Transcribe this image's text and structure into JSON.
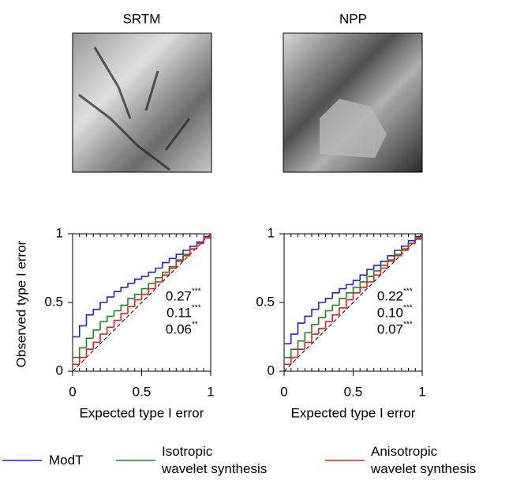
{
  "chart_data": [
    {
      "type": "step",
      "title": "SRTM",
      "xlabel": "Expected type I error",
      "ylabel": "Observed type I error",
      "x": [
        0,
        0.05,
        0.1,
        0.15,
        0.2,
        0.25,
        0.3,
        0.35,
        0.4,
        0.45,
        0.5,
        0.55,
        0.6,
        0.65,
        0.7,
        0.75,
        0.8,
        0.85,
        0.9,
        0.95,
        1
      ],
      "xlim": [
        0,
        1
      ],
      "ylim": [
        0,
        1
      ],
      "xticks": [
        0,
        0.5,
        1
      ],
      "yticks": [
        0,
        0.5,
        1
      ],
      "series": [
        {
          "name": "ModT",
          "color": "#1f1fe6",
          "values": [
            0.25,
            0.33,
            0.41,
            0.45,
            0.5,
            0.54,
            0.58,
            0.61,
            0.64,
            0.67,
            0.69,
            0.72,
            0.75,
            0.79,
            0.82,
            0.85,
            0.88,
            0.91,
            0.94,
            0.98,
            1
          ]
        },
        {
          "name": "Isotropic\nwavelet synthesis",
          "color": "#1a8a1a",
          "values": [
            0.1,
            0.17,
            0.24,
            0.3,
            0.36,
            0.4,
            0.44,
            0.48,
            0.53,
            0.56,
            0.6,
            0.64,
            0.68,
            0.72,
            0.76,
            0.81,
            0.85,
            0.89,
            0.93,
            0.97,
            1
          ]
        },
        {
          "name": "Anisotropic\nwavelet synthesis",
          "color": "#ee1a1a",
          "values": [
            0.05,
            0.1,
            0.16,
            0.21,
            0.27,
            0.32,
            0.37,
            0.42,
            0.47,
            0.52,
            0.56,
            0.6,
            0.65,
            0.7,
            0.75,
            0.8,
            0.84,
            0.89,
            0.93,
            0.97,
            1
          ]
        }
      ],
      "annotations": [
        {
          "text": "0.27",
          "sig": "***"
        },
        {
          "text": "0.11",
          "sig": "***"
        },
        {
          "text": "0.06",
          "sig": "**"
        }
      ]
    },
    {
      "type": "step",
      "title": "NPP",
      "xlabel": "Expected type I error",
      "x": [
        0,
        0.05,
        0.1,
        0.15,
        0.2,
        0.25,
        0.3,
        0.35,
        0.4,
        0.45,
        0.5,
        0.55,
        0.6,
        0.65,
        0.7,
        0.75,
        0.8,
        0.85,
        0.9,
        0.95,
        1
      ],
      "xlim": [
        0,
        1
      ],
      "ylim": [
        0,
        1
      ],
      "xticks": [
        0,
        0.5,
        1
      ],
      "yticks": [
        0,
        0.5,
        1
      ],
      "series": [
        {
          "color": "#1f1fe6",
          "values": [
            0.2,
            0.27,
            0.35,
            0.4,
            0.45,
            0.5,
            0.53,
            0.57,
            0.6,
            0.63,
            0.66,
            0.7,
            0.74,
            0.77,
            0.8,
            0.84,
            0.88,
            0.91,
            0.95,
            0.98,
            1
          ]
        },
        {
          "color": "#1a8a1a",
          "values": [
            0.1,
            0.16,
            0.22,
            0.28,
            0.34,
            0.39,
            0.44,
            0.48,
            0.53,
            0.57,
            0.61,
            0.65,
            0.69,
            0.73,
            0.77,
            0.81,
            0.85,
            0.89,
            0.93,
            0.97,
            1
          ]
        },
        {
          "color": "#ee1a1a",
          "values": [
            0.05,
            0.1,
            0.16,
            0.21,
            0.27,
            0.31,
            0.36,
            0.41,
            0.46,
            0.52,
            0.57,
            0.61,
            0.65,
            0.7,
            0.75,
            0.8,
            0.84,
            0.88,
            0.93,
            0.96,
            1
          ]
        }
      ],
      "annotations": [
        {
          "text": "0.22",
          "sig": "***"
        },
        {
          "text": "0.10",
          "sig": "***"
        },
        {
          "text": "0.07",
          "sig": "***"
        }
      ]
    }
  ]
}
